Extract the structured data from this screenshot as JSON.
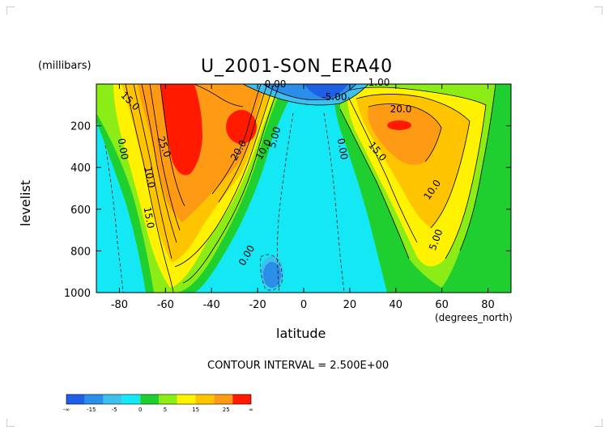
{
  "chart_data": {
    "type": "contour",
    "title": "U_2001-SON_ERA40",
    "unit_label": "(millibars)",
    "xlabel": "latitude",
    "x_unit_label": "(degrees_north)",
    "ylabel": "levelist",
    "xlim": [
      -90,
      90
    ],
    "ylim": [
      1000,
      0
    ],
    "x_ticks": [
      "-80",
      "-60",
      "-40",
      "-20",
      "0",
      "20",
      "40",
      "60",
      "80"
    ],
    "y_ticks": [
      "200",
      "400",
      "600",
      "800",
      "1000"
    ],
    "contour_interval_text": "CONTOUR INTERVAL = 2.500E+00",
    "contour_labels": [
      "0.00",
      "-5.00",
      "1.00",
      "15.0",
      "25.0",
      "20.0",
      "10.0",
      "5.00",
      "0.00",
      "10.0",
      "15.0",
      "20.0",
      "15.0",
      "10.0",
      "0.00",
      "5.00",
      "0.00"
    ],
    "colorbar": {
      "colors": [
        "#1f5fe6",
        "#2b8ee8",
        "#3dc0ee",
        "#14e8f5",
        "#1ecf2f",
        "#8cec16",
        "#fff200",
        "#ffc400",
        "#ff9a14",
        "#ff1a00"
      ],
      "tick_labels": [
        "-∞",
        "-15",
        "-5",
        "0",
        "5",
        "15",
        "25",
        "∞"
      ]
    },
    "colors": {
      "strong_negative": "#1f5fe6",
      "negative": "#2b8ee8",
      "weak_negative": "#3dc0ee",
      "near_zero": "#14e8f5",
      "weak_positive": "#1ecf2f",
      "low_positive": "#8cec16",
      "mid_positive": "#fff200",
      "high_positive": "#ffc400",
      "very_high_positive": "#ff9a14",
      "extreme_positive": "#ff1a00"
    }
  }
}
